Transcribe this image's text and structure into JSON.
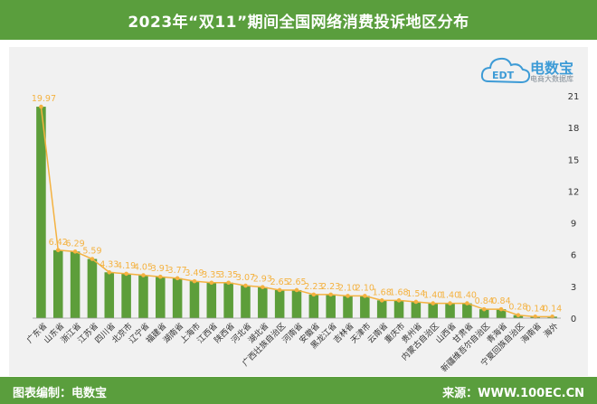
{
  "header": {
    "title": "2023年“双11”期间全国网络消费投诉地区分布"
  },
  "footer": {
    "editor": "图表编制：电数宝",
    "source": "来源：WWW.100EC.CN"
  },
  "logo": {
    "brand": "电数宝",
    "slogan": "电商大数据库",
    "icon": "cloud-edt-logo-icon",
    "mark": "EDT"
  },
  "colors": {
    "bar": "#5d9e3a",
    "line": "#f4b240",
    "header": "#5a9e3d",
    "plot_bg": "#f1f1f1"
  },
  "chart_data": {
    "type": "bar",
    "title": "2023年“双11”期间全国网络消费投诉地区分布",
    "unit": "%",
    "categories": [
      "广东省",
      "山东省",
      "浙江省",
      "江苏省",
      "四川省",
      "北京市",
      "辽宁省",
      "福建省",
      "湖南省",
      "上海市",
      "江西省",
      "陕西省",
      "河北省",
      "湖北省",
      "广西壮族自治区",
      "河南省",
      "安徽省",
      "黑龙江省",
      "吉林省",
      "天津市",
      "云南省",
      "重庆市",
      "贵州省",
      "内蒙古自治区",
      "山西省",
      "甘肃省",
      "新疆维吾尔自治区",
      "青海省",
      "宁夏回族自治区",
      "海南省",
      "海外"
    ],
    "values": [
      19.97,
      6.42,
      6.29,
      5.59,
      4.33,
      4.19,
      4.05,
      3.91,
      3.77,
      3.49,
      3.35,
      3.35,
      3.07,
      2.93,
      2.65,
      2.65,
      2.23,
      2.23,
      2.1,
      2.1,
      1.68,
      1.68,
      1.54,
      1.4,
      1.4,
      1.4,
      0.84,
      0.84,
      0.28,
      0.14,
      0.14
    ],
    "data_labels": [
      "19.97",
      "6.42",
      "6.29",
      "5.59",
      "4.33",
      "4.19",
      "4.05",
      "3.91",
      "3.77",
      "3.49",
      "3.35",
      "3.35",
      "3.07",
      "2.93",
      "2.65",
      "2.65",
      "2.23",
      "2.23",
      "2.10",
      "2.10",
      "1.68",
      "1.68",
      "1.54",
      "1.40",
      "1.40",
      "1.40",
      "0.84",
      "0.84",
      "0.28",
      "0.14",
      "0.14"
    ],
    "y_ticks": [
      "0",
      "3",
      "6",
      "9",
      "12",
      "15",
      "18",
      "21"
    ],
    "ylim": [
      0,
      21
    ],
    "overlay": "line",
    "grid": false,
    "legend": "none"
  }
}
